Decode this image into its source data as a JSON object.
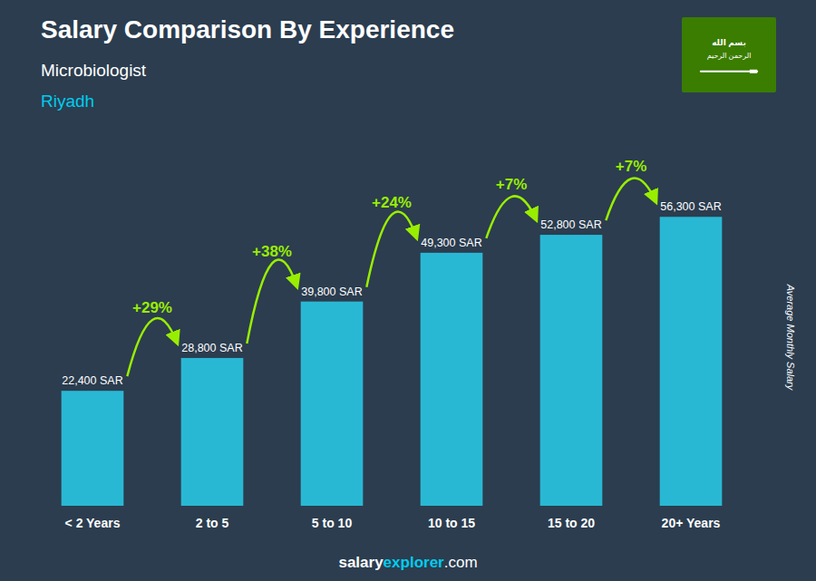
{
  "chart_data": {
    "type": "bar",
    "title": "Salary Comparison By Experience",
    "subtitle": "Microbiologist",
    "city": "Riyadh",
    "ylabel": "Average Monthly Salary",
    "categories": [
      "< 2 Years",
      "2 to 5",
      "5 to 10",
      "10 to 15",
      "15 to 20",
      "20+ Years"
    ],
    "values": [
      22400,
      28800,
      39800,
      49300,
      52800,
      56300
    ],
    "value_labels": [
      "22,400 SAR",
      "28,800 SAR",
      "39,800 SAR",
      "49,300 SAR",
      "52,800 SAR",
      "56,300 SAR"
    ],
    "data_labels": true,
    "color": "#29b8d4",
    "ylim": [
      0,
      68000
    ],
    "grid": false,
    "tick_labels": "x",
    "annotations": [
      {
        "text": "+29%",
        "color": "#99ee00"
      },
      {
        "text": "+38%",
        "color": "#99ee00"
      },
      {
        "text": "+24%",
        "color": "#99ee00"
      },
      {
        "text": "+7%",
        "color": "#99ee00"
      },
      {
        "text": "+7%",
        "color": "#99ee00"
      }
    ],
    "background_color": "#2b3d4f",
    "text_color": "#ffffff",
    "city_color": "#00ccee",
    "footer": [
      {
        "text": "salary",
        "color": "#ffffff"
      },
      {
        "text": "explorer",
        "color": "#00ccee"
      },
      {
        "text": ".com",
        "color": "#ffffff"
      }
    ],
    "flag": {
      "color": "#3a7d00",
      "texts": [
        "بسم الله",
        "الرحمن الرحيم"
      ]
    }
  }
}
